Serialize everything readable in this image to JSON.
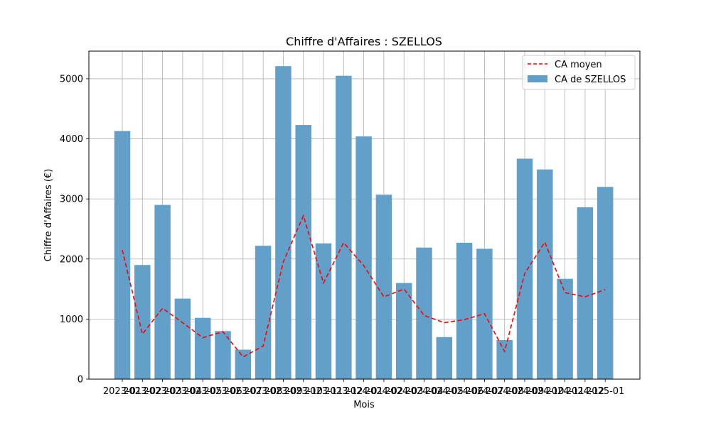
{
  "chart_data": {
    "type": "bar",
    "title": "Chiffre d'Affaires : SZELLOS",
    "xlabel": "Mois",
    "ylabel": "Chiffre d'Affaires (€)",
    "ylim": [
      0,
      5460
    ],
    "yticks": [
      0,
      1000,
      2000,
      3000,
      4000,
      5000
    ],
    "grid": true,
    "legend_position": "top-right",
    "categories": [
      "2023-01",
      "2023-02",
      "2023-03",
      "2023-04",
      "2023-05",
      "2023-06",
      "2023-07",
      "2023-08",
      "2023-09",
      "2023-10",
      "2023-11",
      "2023-12",
      "2024-01",
      "2024-02",
      "2024-03",
      "2024-04",
      "2024-05",
      "2024-06",
      "2024-07",
      "2024-08",
      "2024-09",
      "2024-10",
      "2024-11",
      "2024-12",
      "2025-01"
    ],
    "series": [
      {
        "name": "CA de SZELLOS",
        "type": "bar",
        "color": "#5f9ec8",
        "values": [
          4130,
          1900,
          2900,
          1340,
          1020,
          800,
          490,
          2220,
          5210,
          4230,
          2260,
          5050,
          4040,
          3070,
          1600,
          2190,
          700,
          2270,
          2170,
          650,
          3670,
          3490,
          1670,
          2860,
          3200
        ]
      },
      {
        "name": "CA moyen",
        "type": "line",
        "style": "dashed",
        "color": "#ff0000",
        "values": [
          2150,
          750,
          1180,
          940,
          690,
          790,
          370,
          550,
          1950,
          2720,
          1600,
          2270,
          1890,
          1370,
          1500,
          1060,
          940,
          990,
          1090,
          460,
          1760,
          2280,
          1440,
          1370,
          1490
        ]
      }
    ]
  }
}
